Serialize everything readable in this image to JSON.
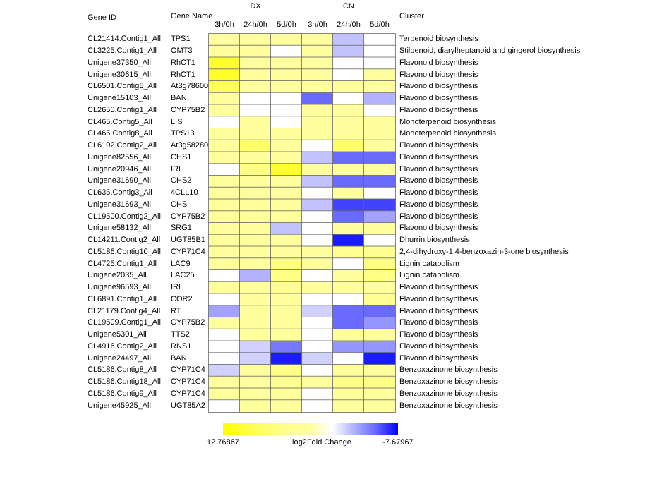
{
  "chart_data": {
    "type": "heatmap",
    "ylabel": "Gene ID",
    "y2label": "Gene Name",
    "clabel": "log2Fold Change",
    "categories": [
      "3h/0h",
      "24h/0h",
      "5d/0h",
      "3h/0h",
      "24h/0h",
      "5d/0h"
    ],
    "y_categories": [
      "CL21414.Contig1_All",
      "CL3225.Contig1_All",
      "Unigene37350_All",
      "Unigene30615_All",
      "CL6501.Contig5_All",
      "Unigene15103_All",
      "CL2650.Contig1_All",
      "CL465.Contig5_All",
      "CL465.Contig8_All",
      "CL6102.Contig2_All",
      "Unigene82556_All",
      "Unigene20946_All",
      "Unigene31690_All",
      "CL635.Contig3_All",
      "Unigene31693_All",
      "CL19500.Contig2_All",
      "Unigene58132_All",
      "CL14211.Contig2_All",
      "CL5186.Contig10_All",
      "CL4725.Contig1_All",
      "Unigene2035_All",
      "Unigene96593_All",
      "CL6891.Contig1_All",
      "CL21179.Contig4_All",
      "CL19509.Contig1_All",
      "Unigene5301_All",
      "CL4916.Contig2_All",
      "Unigene24497_All",
      "CL5186.Contig8_All",
      "CL5186.Contig18_All",
      "CL5186.Contig9_All",
      "Unigene45925_All"
    ],
    "y2_categories": [
      "TPS1",
      "OMT3",
      "RhCT1",
      "RhCT1",
      "At3g78600",
      "BAN",
      "CYP75B2",
      "LIS",
      "TPS13",
      "At3g58280",
      "CHS1",
      "IRL",
      "CHS2",
      "4CLL10",
      "CHS",
      "CYP75B2",
      "SRG1",
      "UGT85B1",
      "CYP71C4",
      "LAC9",
      "LAC25",
      "IRL",
      "COR2",
      "RT",
      "CYP75B2",
      "TTS2",
      "RNS1",
      "BAN",
      "CYP71C4",
      "CYP71C4",
      "CYP71C4",
      "UGT85A2"
    ],
    "cells": [
      [
        3,
        3,
        3,
        3,
        -2,
        0
      ],
      [
        3,
        3,
        0,
        3,
        -2,
        0
      ],
      [
        11,
        3,
        3,
        3,
        0,
        0
      ],
      [
        11,
        3,
        3,
        3,
        0,
        3
      ],
      [
        9,
        3,
        3,
        3,
        3,
        3
      ],
      [
        3,
        0,
        0,
        -5,
        0,
        -2.5
      ],
      [
        3,
        0,
        0,
        3,
        3,
        0
      ],
      [
        0,
        3,
        0,
        3,
        3,
        3
      ],
      [
        3,
        3,
        3,
        3,
        3,
        3
      ],
      [
        3,
        8,
        3,
        0,
        8,
        3
      ],
      [
        3,
        3,
        3,
        -2,
        -5,
        -5
      ],
      [
        0,
        6,
        11,
        3,
        3,
        3
      ],
      [
        3,
        3,
        3,
        -2,
        -5,
        -5
      ],
      [
        3,
        3,
        3,
        0,
        3,
        0
      ],
      [
        3,
        3,
        3,
        -2,
        -6,
        -6
      ],
      [
        3,
        3,
        3,
        0,
        -5,
        -3
      ],
      [
        3,
        3,
        -2,
        0,
        3,
        3
      ],
      [
        3,
        3,
        3,
        0,
        -7,
        0
      ],
      [
        3,
        3,
        3,
        3,
        5,
        5
      ],
      [
        3,
        3,
        6,
        3,
        0,
        6
      ],
      [
        0,
        -2.5,
        6,
        0,
        3,
        6
      ],
      [
        3,
        3,
        5,
        3,
        3,
        3
      ],
      [
        0,
        3,
        3,
        0,
        0,
        5
      ],
      [
        -3,
        3,
        3,
        -1.5,
        -5,
        -5
      ],
      [
        3,
        3,
        3,
        0,
        -5,
        -3.5
      ],
      [
        0,
        3,
        3,
        0,
        3,
        3
      ],
      [
        0,
        -1.5,
        -4.5,
        0,
        -3.5,
        -3.5
      ],
      [
        0,
        -1.5,
        -7,
        -1.5,
        0,
        -7
      ],
      [
        -1.5,
        3,
        6,
        0,
        3,
        3
      ],
      [
        3,
        3,
        5,
        3,
        6,
        6
      ],
      [
        3,
        3,
        3,
        0,
        3,
        3
      ],
      [
        0,
        3,
        3,
        0,
        3,
        3
      ]
    ],
    "clim": [
      -7.67967,
      12.76867
    ],
    "cticks": [
      12.76867,
      -7.67967
    ],
    "annotations": [
      "DX",
      "CN",
      "Cluster",
      "Terpenoid biosynthesis",
      "Stilbenoid, diarylheptanoid and gingerol biosynthesis",
      "Flavonoid biosynthesis",
      "Flavonoid biosynthesis",
      "Flavonoid biosynthesis",
      "Flavonoid biosynthesis",
      "Flavonoid biosynthesis",
      "Monoterpenoid biosynthesis",
      "Monoterpenoid biosynthesis",
      "Flavonoid biosynthesis",
      "Flavonoid biosynthesis",
      "Flavonoid biosynthesis",
      "Flavonoid biosynthesis",
      "Flavonoid biosynthesis",
      "Flavonoid biosynthesis",
      "Flavonoid biosynthesis",
      "Flavonoid biosynthesis",
      "Dhurrin biosynthesis",
      "2,4-dihydroxy-1,4-benzoxazin-3-one biosynthesis",
      "Lignin catabolism",
      "Lignin catabolism",
      "Flavonoid biosynthesis",
      "Flavonoid biosynthesis",
      "Flavonoid biosynthesis",
      "Flavonoid biosynthesis",
      "Flavonoid biosynthesis",
      "Flavonoid biosynthesis",
      "Flavonoid biosynthesis",
      "Benzoxazinone biosynthesis",
      "Benzoxazinone biosynthesis",
      "Benzoxazinone biosynthesis",
      "Benzoxazinone biosynthesis"
    ]
  }
}
